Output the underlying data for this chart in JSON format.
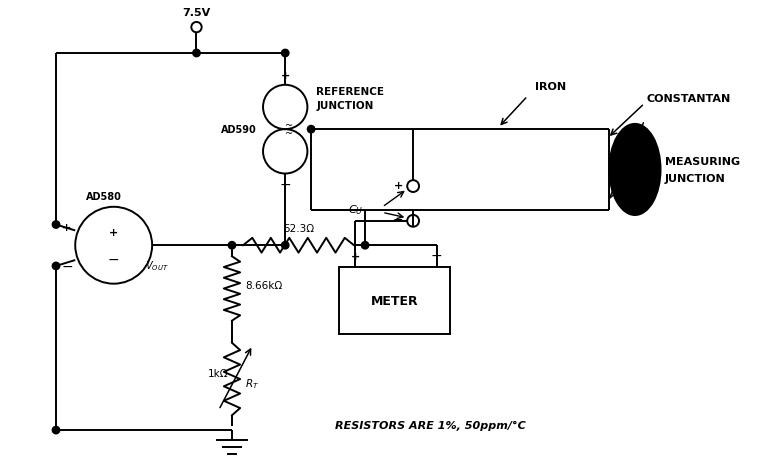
{
  "background_color": "#ffffff",
  "line_color": "#000000",
  "fig_width": 7.57,
  "fig_height": 4.77,
  "lw": 1.4,
  "supply_label": "7.5V",
  "ad580_label": "AD580",
  "vout_label": "V_{OUT}",
  "ad590_label": "AD590",
  "ref_junction_line1": "REFERENCE",
  "ref_junction_line2": "JUNCTION",
  "iron_label": "IRON",
  "constantan_label": "CONSTANTAN",
  "measuring_junction_line1": "MEASURING",
  "measuring_junction_line2": "JUNCTION",
  "r1_label": "52.3Ω",
  "r2_label": "8.66kΩ",
  "r3_label": "1kΩ",
  "rt_label": "R_T",
  "meter_label": "METER",
  "cu_label": "C_U",
  "resistor_note": "RESISTORS ARE 1%, 50ppm/°C"
}
